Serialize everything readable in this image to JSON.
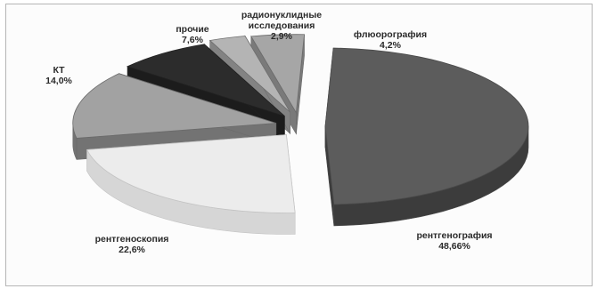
{
  "chart_data": {
    "type": "pie",
    "style": "3d-exploded",
    "title": "",
    "legend": "none",
    "slices": [
      {
        "label": "рентгенография",
        "value_label": "48,66%",
        "value": 48.66,
        "top_color": "#5c5c5c",
        "side_color": "#3c3c3c",
        "edge_color": "#4a4a4a"
      },
      {
        "label": "рентгеноскопия",
        "value_label": "22,6%",
        "value": 22.6,
        "top_color": "#ececec",
        "side_color": "#d6d6d6",
        "edge_color": "#c4c4c4"
      },
      {
        "label": "КТ",
        "value_label": "14,0%",
        "value": 14.0,
        "top_color": "#a2a2a2",
        "side_color": "#737373",
        "edge_color": "#6a6a6a"
      },
      {
        "label": "прочие",
        "value_label": "7,6%",
        "value": 7.6,
        "top_color": "#2c2c2c",
        "side_color": "#1c1c1c",
        "edge_color": "#222222"
      },
      {
        "label": "радионуклидные исследования",
        "label_lines": [
          "радионуклидные",
          "исследования"
        ],
        "value_label": "2,9%",
        "value": 2.9,
        "top_color": "#b4b4b4",
        "side_color": "#838383",
        "edge_color": "#6f6f6f"
      },
      {
        "label": "флюорография",
        "value_label": "4,2%",
        "value": 4.2,
        "top_color": "#a6a6a6",
        "side_color": "#7a7a7a",
        "edge_color": "#6a6a6a"
      }
    ]
  }
}
